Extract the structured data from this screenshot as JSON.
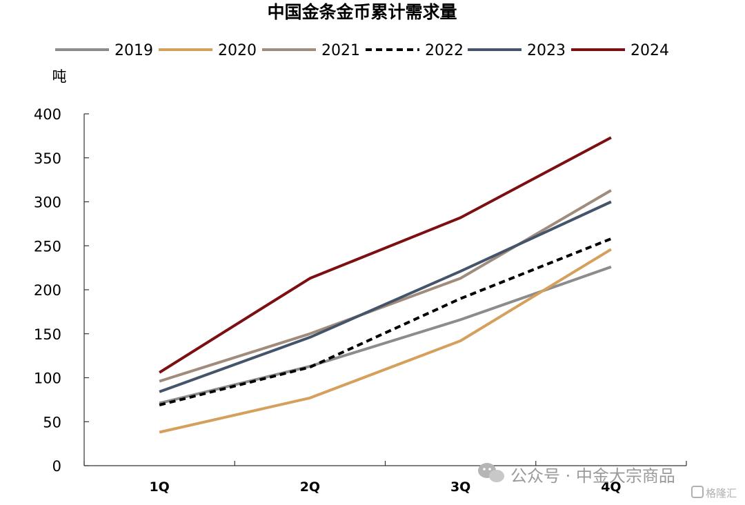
{
  "chart_data": {
    "type": "line",
    "title": "中国金条金币累计需求量",
    "ylabel": "吨",
    "xlabel": "",
    "categories": [
      "1Q",
      "2Q",
      "3Q",
      "4Q"
    ],
    "ylim": [
      0,
      400
    ],
    "yticks": [
      0,
      50,
      100,
      150,
      200,
      250,
      300,
      350,
      400
    ],
    "grid": false,
    "legend_position": "top",
    "series": [
      {
        "name": "2019",
        "values": [
          71,
          113,
          166,
          226
        ],
        "color": "#8c8c8c",
        "dash": "solid"
      },
      {
        "name": "2020",
        "values": [
          38,
          77,
          142,
          246
        ],
        "color": "#d4a05c",
        "dash": "solid"
      },
      {
        "name": "2021",
        "values": [
          96,
          150,
          213,
          313
        ],
        "color": "#a08c7c",
        "dash": "solid"
      },
      {
        "name": "2022",
        "values": [
          69,
          112,
          190,
          258
        ],
        "color": "#000000",
        "dash": "dashed"
      },
      {
        "name": "2023",
        "values": [
          84,
          146,
          221,
          300
        ],
        "color": "#44546a",
        "dash": "solid"
      },
      {
        "name": "2024",
        "values": [
          106,
          213,
          282,
          373
        ],
        "color": "#7b0f12",
        "dash": "solid"
      }
    ]
  },
  "watermark": {
    "text": "公众号 · 中金大宗商品",
    "brand": "格隆汇"
  }
}
